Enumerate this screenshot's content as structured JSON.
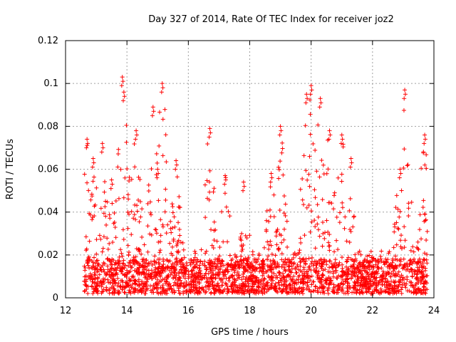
{
  "chart_data": {
    "type": "scatter",
    "title": "Day 327 of 2014, Rate Of TEC Index for receiver joz2",
    "xlabel": "GPS time / hours",
    "ylabel": "ROTI / TECUs",
    "xlim": [
      12,
      24
    ],
    "ylim": [
      0,
      0.12
    ],
    "x_ticks": [
      12,
      14,
      16,
      18,
      20,
      22,
      24
    ],
    "x_tick_labels": [
      "12",
      "14",
      "16",
      "18",
      "20",
      "22",
      "24"
    ],
    "y_ticks": [
      0,
      0.02,
      0.04,
      0.06,
      0.08,
      0.1,
      0.12
    ],
    "y_tick_labels": [
      "0",
      "0.02",
      "0.04",
      "0.06",
      "0.08",
      "0.1",
      "0.12"
    ],
    "grid": true,
    "marker": "+",
    "color": "#ff0000",
    "series": [
      {
        "name": "ROTI",
        "x_range": [
          12.6,
          23.8
        ],
        "baseline_range": [
          0.002,
          0.025
        ],
        "peaks": [
          {
            "x": 12.7,
            "y": 0.074
          },
          {
            "x": 12.9,
            "y": 0.065
          },
          {
            "x": 13.2,
            "y": 0.072
          },
          {
            "x": 13.5,
            "y": 0.055
          },
          {
            "x": 13.85,
            "y": 0.103
          },
          {
            "x": 13.9,
            "y": 0.096
          },
          {
            "x": 14.3,
            "y": 0.078
          },
          {
            "x": 14.85,
            "y": 0.089
          },
          {
            "x": 15.0,
            "y": 0.06
          },
          {
            "x": 15.15,
            "y": 0.1
          },
          {
            "x": 15.6,
            "y": 0.064
          },
          {
            "x": 16.7,
            "y": 0.079
          },
          {
            "x": 17.2,
            "y": 0.057
          },
          {
            "x": 17.8,
            "y": 0.054
          },
          {
            "x": 18.7,
            "y": 0.058
          },
          {
            "x": 19.0,
            "y": 0.08
          },
          {
            "x": 19.85,
            "y": 0.095
          },
          {
            "x": 20.0,
            "y": 0.099
          },
          {
            "x": 20.3,
            "y": 0.093
          },
          {
            "x": 20.6,
            "y": 0.078
          },
          {
            "x": 21.0,
            "y": 0.076
          },
          {
            "x": 21.3,
            "y": 0.065
          },
          {
            "x": 22.9,
            "y": 0.06
          },
          {
            "x": 23.05,
            "y": 0.097
          },
          {
            "x": 23.7,
            "y": 0.076
          }
        ]
      }
    ]
  }
}
